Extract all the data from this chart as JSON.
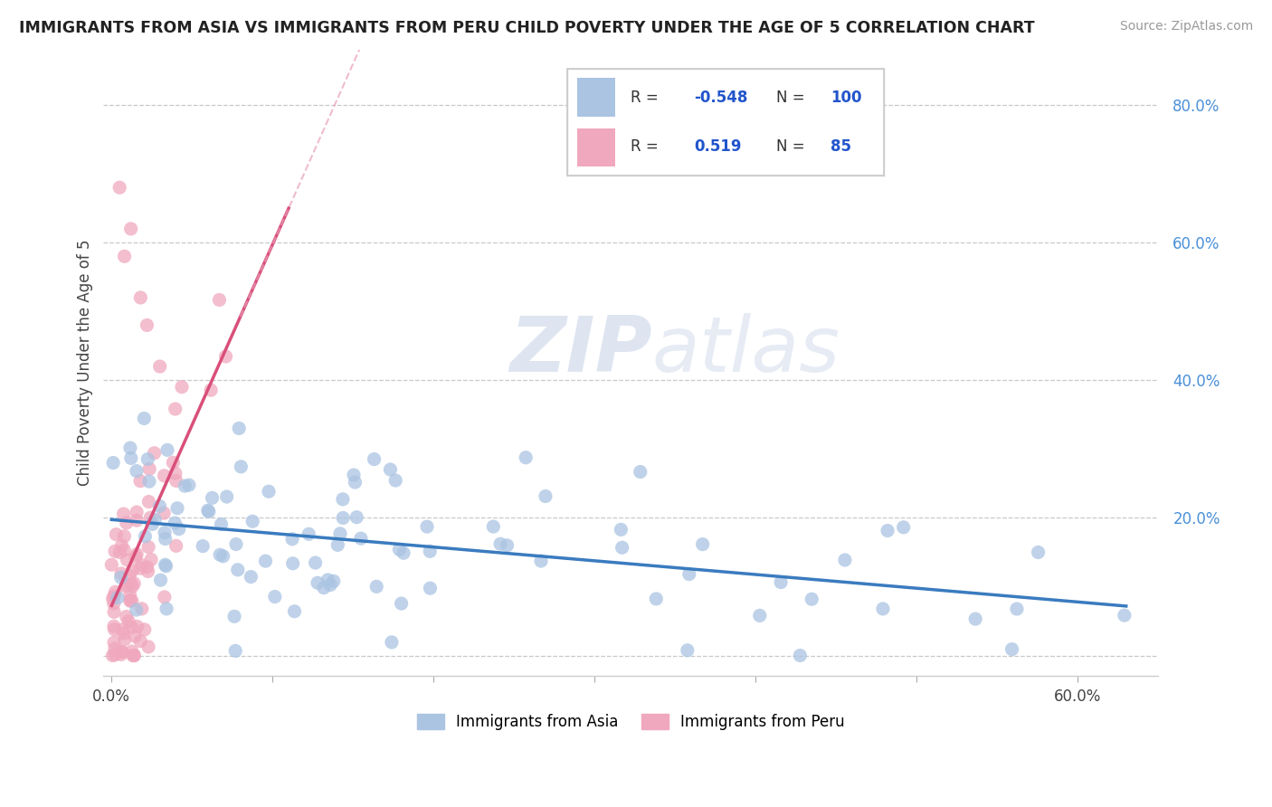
{
  "title": "IMMIGRANTS FROM ASIA VS IMMIGRANTS FROM PERU CHILD POVERTY UNDER THE AGE OF 5 CORRELATION CHART",
  "source": "Source: ZipAtlas.com",
  "ylabel": "Child Poverty Under the Age of 5",
  "r_asia": -0.548,
  "n_asia": 100,
  "r_peru": 0.519,
  "n_peru": 85,
  "xlim": [
    -0.005,
    0.65
  ],
  "ylim": [
    -0.03,
    0.88
  ],
  "color_asia": "#aac4e2",
  "color_peru": "#f0a8be",
  "line_color_asia": "#3a7bbf",
  "line_color_peru": "#d94f7a",
  "line_color_peru_dashed": "#e8a0b8",
  "watermark_zip": "ZIP",
  "watermark_atlas": "atlas",
  "legend_color_asia": "#aac4e2",
  "legend_color_peru": "#f0a8be",
  "legend_label_asia": "Immigrants from Asia",
  "legend_label_peru": "Immigrants from Peru"
}
